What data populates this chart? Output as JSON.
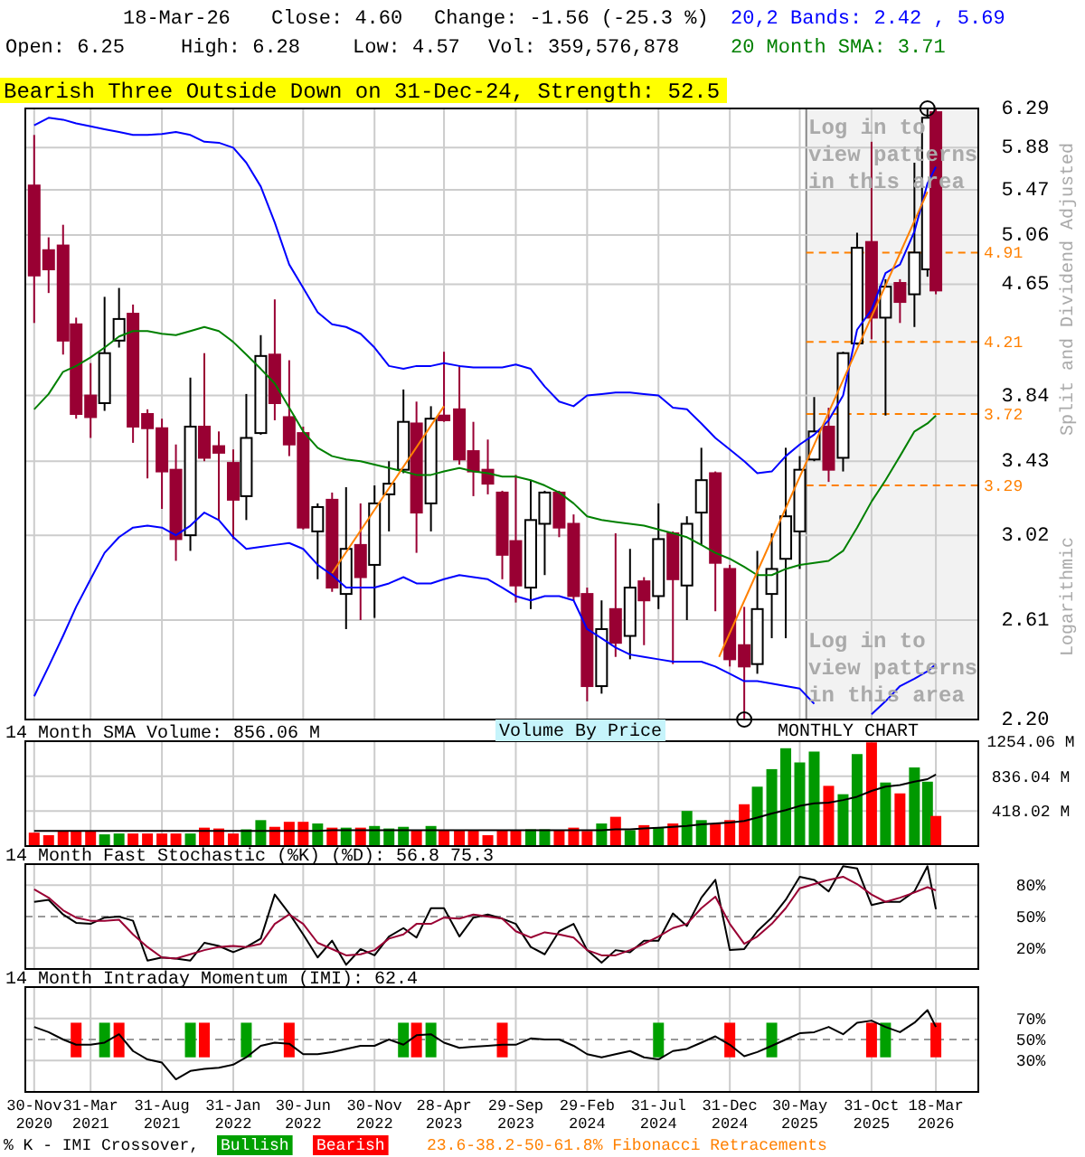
{
  "chart_data": [
    {
      "type": "candlestick",
      "title": "Bearish Three Outside Down on 31-Dec-24, Strength: 52.5",
      "ylabel": "Split and Dividend Adjusted",
      "annotations": [
        "18-Mar-26",
        "Close: 4.60",
        "Change: -1.56 (-25.3 %)",
        "20,2 Bands: 2.42 , 5.69",
        "Open: 6.25",
        "High: 6.28",
        "Low: 4.57",
        "Vol: 359,576,878",
        "20 Month SMA: 3.71",
        "Log in to view patterns in this area",
        "Log in to view patterns in this area",
        "Logarithmic"
      ],
      "x": [
        "2020-11-30",
        "2020-12-31",
        "2021-01-31",
        "2021-02-28",
        "2021-03-31",
        "2021-04-30",
        "2021-05-31",
        "2021-06-30",
        "2021-07-31",
        "2021-08-31",
        "2021-09-30",
        "2021-10-31",
        "2021-11-30",
        "2021-12-31",
        "2022-01-31",
        "2022-02-28",
        "2022-03-31",
        "2022-04-30",
        "2022-05-31",
        "2022-06-30",
        "2022-07-31",
        "2022-08-31",
        "2022-09-30",
        "2022-10-31",
        "2022-11-30",
        "2022-12-31",
        "2023-01-31",
        "2023-02-28",
        "2023-03-31",
        "2023-04-28",
        "2023-05-31",
        "2023-06-30",
        "2023-07-31",
        "2023-08-31",
        "2023-09-29",
        "2023-10-31",
        "2023-11-30",
        "2023-12-31",
        "2024-01-31",
        "2024-02-29",
        "2024-03-31",
        "2024-04-30",
        "2024-05-31",
        "2024-06-30",
        "2024-07-31",
        "2024-08-31",
        "2024-09-30",
        "2024-10-31",
        "2024-11-30",
        "2024-12-31",
        "2025-01-31",
        "2025-02-28",
        "2025-03-31",
        "2025-04-30",
        "2025-05-30",
        "2025-06-30",
        "2025-07-31",
        "2025-08-31",
        "2025-09-30",
        "2025-10-31",
        "2025-11-30",
        "2025-12-31",
        "2026-01-31",
        "2026-02-28",
        "2026-03-18"
      ],
      "ohlc": [
        [
          5.51,
          6.01,
          4.35,
          4.72
        ],
        [
          4.93,
          5.04,
          4.58,
          4.77
        ],
        [
          4.97,
          5.15,
          4.12,
          4.22
        ],
        [
          4.34,
          4.39,
          3.69,
          3.72
        ],
        [
          3.84,
          4.06,
          3.57,
          3.7
        ],
        [
          3.79,
          4.55,
          3.74,
          4.13
        ],
        [
          4.22,
          4.62,
          4.17,
          4.38
        ],
        [
          4.42,
          4.49,
          3.54,
          3.64
        ],
        [
          3.72,
          3.75,
          3.33,
          3.63
        ],
        [
          3.63,
          3.69,
          3.16,
          3.37
        ],
        [
          3.38,
          3.53,
          2.89,
          3.0
        ],
        [
          3.02,
          3.96,
          2.94,
          3.64
        ],
        [
          3.64,
          4.13,
          3.43,
          3.45
        ],
        [
          3.52,
          3.61,
          3.1,
          3.48
        ],
        [
          3.42,
          3.5,
          3.0,
          3.21
        ],
        [
          3.23,
          3.85,
          3.1,
          3.57
        ],
        [
          3.6,
          4.26,
          3.59,
          4.11
        ],
        [
          4.12,
          4.53,
          3.68,
          3.79
        ],
        [
          3.7,
          4.08,
          3.46,
          3.53
        ],
        [
          3.6,
          3.64,
          3.05,
          3.06
        ],
        [
          3.04,
          3.19,
          2.8,
          3.17
        ],
        [
          3.21,
          3.25,
          2.74,
          2.76
        ],
        [
          2.73,
          3.28,
          2.57,
          2.95
        ],
        [
          2.97,
          3.19,
          2.61,
          2.81
        ],
        [
          2.87,
          3.29,
          2.62,
          3.19
        ],
        [
          3.24,
          3.43,
          3.04,
          3.3
        ],
        [
          3.38,
          3.88,
          3.36,
          3.67
        ],
        [
          3.66,
          3.8,
          2.93,
          3.14
        ],
        [
          3.19,
          3.77,
          3.04,
          3.69
        ],
        [
          3.71,
          4.14,
          3.67,
          3.68
        ],
        [
          3.75,
          4.04,
          3.41,
          3.44
        ],
        [
          3.49,
          3.67,
          3.23,
          3.37
        ],
        [
          3.38,
          3.56,
          3.24,
          3.3
        ],
        [
          3.25,
          3.26,
          2.8,
          2.92
        ],
        [
          2.99,
          3.35,
          2.69,
          2.77
        ],
        [
          2.76,
          3.32,
          2.66,
          3.1
        ],
        [
          3.08,
          3.26,
          2.82,
          3.25
        ],
        [
          3.25,
          3.26,
          3.01,
          3.06
        ],
        [
          3.08,
          3.13,
          2.7,
          2.72
        ],
        [
          2.73,
          2.76,
          2.27,
          2.33
        ],
        [
          2.33,
          2.7,
          2.3,
          2.57
        ],
        [
          2.66,
          3.03,
          2.45,
          2.51
        ],
        [
          2.54,
          2.95,
          2.44,
          2.76
        ],
        [
          2.79,
          2.81,
          2.5,
          2.7
        ],
        [
          2.72,
          3.19,
          2.66,
          3.0
        ],
        [
          3.03,
          3.04,
          2.42,
          2.8
        ],
        [
          2.77,
          3.12,
          2.61,
          3.08
        ],
        [
          3.14,
          3.51,
          2.97,
          3.32
        ],
        [
          3.36,
          3.37,
          2.65,
          2.88
        ],
        [
          2.85,
          2.87,
          2.41,
          2.44
        ],
        [
          2.5,
          2.67,
          2.2,
          2.41
        ],
        [
          2.42,
          2.94,
          2.38,
          2.66
        ],
        [
          2.73,
          3.03,
          2.53,
          2.85
        ],
        [
          2.9,
          3.51,
          2.53,
          3.12
        ],
        [
          3.04,
          3.46,
          2.85,
          3.38
        ],
        [
          3.44,
          3.83,
          3.43,
          3.61
        ],
        [
          3.64,
          3.76,
          3.31,
          3.38
        ],
        [
          3.45,
          4.14,
          3.37,
          4.13
        ],
        [
          4.2,
          5.08,
          4.19,
          4.95
        ],
        [
          5.0,
          5.94,
          4.23,
          4.39
        ],
        [
          4.39,
          4.69,
          3.71,
          4.63
        ],
        [
          4.66,
          4.69,
          4.35,
          4.51
        ],
        [
          4.57,
          5.73,
          4.32,
          4.91
        ],
        [
          4.77,
          6.29,
          4.71,
          6.19
        ],
        [
          6.25,
          6.28,
          4.57,
          4.6
        ]
      ],
      "series": [
        {
          "type": "line",
          "color": "#0000ff",
          "values": [
            6.11,
            6.19,
            6.17,
            6.13,
            6.1,
            6.07,
            6.04,
            6.01,
            6.01,
            6.02,
            6.04,
            6.01,
            5.94,
            5.93,
            5.88,
            5.73,
            5.5,
            5.17,
            4.81,
            4.62,
            4.43,
            4.34,
            4.32,
            4.27,
            4.17,
            4.04,
            4.02,
            4.04,
            4.04,
            4.06,
            4.04,
            4.03,
            4.03,
            4.03,
            4.05,
            4.02,
            3.9,
            3.8,
            3.77,
            3.84,
            3.85,
            3.86,
            3.86,
            3.85,
            3.84,
            3.76,
            3.75,
            3.66,
            3.57,
            3.5,
            3.43,
            3.36,
            3.37,
            3.46,
            3.53,
            3.59,
            3.68,
            3.84,
            4.3,
            4.45,
            4.74,
            4.81,
            5.09,
            5.53,
            5.69
          ]
        },
        {
          "type": "line",
          "color": "#0000ff",
          "values": [
            2.29,
            2.41,
            2.54,
            2.67,
            2.8,
            2.93,
            3.01,
            3.06,
            3.07,
            3.06,
            3.02,
            3.07,
            3.14,
            3.1,
            3.01,
            2.95,
            2.96,
            2.97,
            2.98,
            2.95,
            2.87,
            2.82,
            2.76,
            2.76,
            2.76,
            2.78,
            2.81,
            2.78,
            2.78,
            2.8,
            2.82,
            2.81,
            2.8,
            2.76,
            2.72,
            2.7,
            2.72,
            2.72,
            2.7,
            2.57,
            2.53,
            2.49,
            2.46,
            2.45,
            2.44,
            2.43,
            2.43,
            2.43,
            2.41,
            2.38,
            2.35,
            2.35,
            2.34,
            2.33,
            2.32,
            2.26,
            null,
            null,
            null,
            2.22,
            2.27,
            2.33,
            2.36,
            2.39,
            2.42
          ]
        },
        {
          "type": "line",
          "color": "#008000",
          "values": [
            3.75,
            3.85,
            4.0,
            4.04,
            4.1,
            4.17,
            4.25,
            4.29,
            4.29,
            4.27,
            4.26,
            4.29,
            4.32,
            4.29,
            4.21,
            4.12,
            4.02,
            3.92,
            3.76,
            3.61,
            3.51,
            3.46,
            3.44,
            3.43,
            3.41,
            3.39,
            3.37,
            3.35,
            3.35,
            3.37,
            3.39,
            3.37,
            3.36,
            3.34,
            3.34,
            3.32,
            3.29,
            3.25,
            3.19,
            3.12,
            3.1,
            3.09,
            3.08,
            3.07,
            3.05,
            3.03,
            3.01,
            2.97,
            2.93,
            2.9,
            2.86,
            2.82,
            2.82,
            2.85,
            2.87,
            2.88,
            2.89,
            2.94,
            3.06,
            3.2,
            3.32,
            3.46,
            3.61,
            3.66,
            3.71
          ]
        },
        {
          "type": "line",
          "color": "#ff8000",
          "x": [
            "2022-08-31",
            "2023-04-28"
          ],
          "values": [
            2.83,
            3.77
          ]
        },
        {
          "type": "line",
          "color": "#ff8000",
          "x": [
            "2024-12-08",
            "2026-02-28"
          ],
          "values": [
            2.45,
            5.45
          ]
        }
      ],
      "xlim": [
        "2020-11-11",
        "2026-06-17"
      ],
      "ylim": [
        2.2,
        6.29
      ],
      "log": true,
      "yticks": [
        {
          "value": 2.2,
          "label": "2.20"
        },
        2.61,
        3.02,
        3.43,
        3.84,
        4.65,
        5.06,
        5.47,
        5.88,
        6.29
      ],
      "xticks": [
        {
          "value": "2020-11-30",
          "label": null
        },
        {
          "value": "2021-03-31",
          "label": null
        },
        {
          "value": "2021-08-31",
          "label": null
        },
        {
          "value": "2022-01-31",
          "label": null
        },
        {
          "value": "2022-06-30",
          "label": null
        },
        {
          "value": "2022-11-30",
          "label": null
        },
        {
          "value": "2023-04-28",
          "label": null
        },
        {
          "value": "2023-09-29",
          "label": null
        },
        {
          "value": "2024-02-29",
          "label": null
        },
        {
          "value": "2024-07-31",
          "label": null
        },
        {
          "value": "2024-12-31",
          "label": null
        },
        {
          "value": "2025-05-30",
          "label": null
        },
        {
          "value": "2025-10-31",
          "label": null
        },
        {
          "value": "2026-03-18",
          "label": null
        }
      ],
      "grid": true,
      "tick_labels": "y",
      "ref_lines": [
        {
          "axis": "y",
          "value": 4.91,
          "label": "4.91",
          "color": "#ff8000",
          "line_style": "dashed"
        },
        {
          "axis": "y",
          "value": 4.21,
          "label": "4.21",
          "color": "#ff8000",
          "line_style": "dashed"
        },
        {
          "axis": "y",
          "value": 3.72,
          "label": "3.72",
          "color": "#ff8000",
          "line_style": "dashed"
        },
        {
          "axis": "y",
          "value": 3.29,
          "label": "3.29",
          "color": "#ff8000",
          "line_style": "dashed"
        }
      ],
      "bands": [
        {
          "axis": "x",
          "from": "2025-06-13",
          "to": "2026-06-17",
          "color": "#f2f2f2"
        }
      ]
    },
    {
      "type": "bar",
      "title": "14 Month SMA Volume: 856.06 M",
      "annotations": [
        "Volume By Price",
        "MONTHLY CHART"
      ],
      "x": [
        "2020-11-30",
        "2020-12-31",
        "2021-01-31",
        "2021-02-28",
        "2021-03-31",
        "2021-04-30",
        "2021-05-31",
        "2021-06-30",
        "2021-07-31",
        "2021-08-31",
        "2021-09-30",
        "2021-10-31",
        "2021-11-30",
        "2021-12-31",
        "2022-01-31",
        "2022-02-28",
        "2022-03-31",
        "2022-04-30",
        "2022-05-31",
        "2022-06-30",
        "2022-07-31",
        "2022-08-31",
        "2022-09-30",
        "2022-10-31",
        "2022-11-30",
        "2022-12-31",
        "2023-01-31",
        "2023-02-28",
        "2023-03-31",
        "2023-04-28",
        "2023-05-31",
        "2023-06-30",
        "2023-07-31",
        "2023-08-31",
        "2023-09-29",
        "2023-10-31",
        "2023-11-30",
        "2023-12-31",
        "2024-01-31",
        "2024-02-29",
        "2024-03-31",
        "2024-04-30",
        "2024-05-31",
        "2024-06-30",
        "2024-07-31",
        "2024-08-31",
        "2024-09-30",
        "2024-10-31",
        "2024-11-30",
        "2024-12-31",
        "2025-01-31",
        "2025-02-28",
        "2025-03-31",
        "2025-04-30",
        "2025-05-30",
        "2025-06-30",
        "2025-07-31",
        "2025-08-31",
        "2025-09-30",
        "2025-10-31",
        "2025-11-30",
        "2025-12-31",
        "2026-01-31",
        "2026-02-28",
        "2026-03-18"
      ],
      "values": [
        160,
        130,
        180,
        180,
        180,
        140,
        150,
        150,
        150,
        150,
        150,
        150,
        220,
        210,
        150,
        200,
        310,
        230,
        290,
        290,
        270,
        220,
        220,
        220,
        240,
        210,
        230,
        190,
        240,
        190,
        190,
        190,
        130,
        190,
        190,
        200,
        200,
        190,
        220,
        180,
        270,
        350,
        190,
        250,
        220,
        270,
        420,
        310,
        270,
        310,
        500,
        710,
        920,
        1170,
        1000,
        1130,
        720,
        620,
        1100,
        1240,
        760,
        630,
        940,
        770,
        360
      ],
      "colors": [
        "#ff0000",
        "#ff0000",
        "#ff0000",
        "#ff0000",
        "#ff0000",
        "#009900",
        "#009900",
        "#ff0000",
        "#ff0000",
        "#ff0000",
        "#ff0000",
        "#009900",
        "#ff0000",
        "#ff0000",
        "#ff0000",
        "#009900",
        "#009900",
        "#ff0000",
        "#ff0000",
        "#ff0000",
        "#009900",
        "#ff0000",
        "#009900",
        "#ff0000",
        "#009900",
        "#009900",
        "#009900",
        "#ff0000",
        "#009900",
        "#ff0000",
        "#ff0000",
        "#ff0000",
        "#ff0000",
        "#ff0000",
        "#ff0000",
        "#009900",
        "#009900",
        "#ff0000",
        "#ff0000",
        "#ff0000",
        "#009900",
        "#ff0000",
        "#009900",
        "#ff0000",
        "#009900",
        "#ff0000",
        "#009900",
        "#009900",
        "#ff0000",
        "#ff0000",
        "#ff0000",
        "#009900",
        "#009900",
        "#009900",
        "#009900",
        "#009900",
        "#ff0000",
        "#009900",
        "#009900",
        "#ff0000",
        "#009900",
        "#ff0000",
        "#009900",
        "#009900",
        "#ff0000"
      ],
      "series": [
        {
          "type": "line",
          "color": "#000000",
          "values": [
            180,
            180,
            180,
            180,
            180,
            180,
            180,
            180,
            180,
            180,
            180,
            180,
            180,
            180,
            180,
            180,
            180,
            180,
            180,
            180,
            180,
            190,
            190,
            190,
            190,
            190,
            190,
            190,
            190,
            190,
            190,
            190,
            190,
            190,
            190,
            190,
            190,
            190,
            190,
            190,
            190,
            200,
            200,
            210,
            220,
            230,
            240,
            260,
            270,
            280,
            300,
            340,
            390,
            430,
            480,
            510,
            520,
            550,
            590,
            660,
            710,
            730,
            770,
            800,
            856.06
          ]
        }
      ],
      "xlim": [
        "2020-11-11",
        "2026-06-17"
      ],
      "ylim": [
        0,
        1254.06
      ],
      "yticks": [
        {
          "value": 418.02,
          "label": "418.02 M"
        },
        {
          "value": 836.04,
          "label": "836.04 M"
        },
        {
          "value": 1254.06,
          "label": "1254.06 M"
        }
      ],
      "xticks": [
        {
          "value": "2020-11-30",
          "label": null
        },
        {
          "value": "2021-03-31",
          "label": null
        },
        {
          "value": "2021-08-31",
          "label": null
        },
        {
          "value": "2022-01-31",
          "label": null
        },
        {
          "value": "2022-06-30",
          "label": null
        },
        {
          "value": "2022-11-30",
          "label": null
        },
        {
          "value": "2023-04-28",
          "label": null
        },
        {
          "value": "2023-09-29",
          "label": null
        },
        {
          "value": "2024-02-29",
          "label": null
        },
        {
          "value": "2024-07-31",
          "label": null
        },
        {
          "value": "2024-12-31",
          "label": null
        },
        {
          "value": "2025-05-30",
          "label": null
        },
        {
          "value": "2025-10-31",
          "label": null
        },
        {
          "value": "2026-03-18",
          "label": null
        }
      ],
      "grid": true,
      "tick_labels": "y"
    },
    {
      "type": "line",
      "title": "14 Month Fast Stochastic (%K) (%D): 56.8  75.3",
      "x": [
        "2020-11-30",
        "2020-12-31",
        "2021-01-31",
        "2021-02-28",
        "2021-03-31",
        "2021-04-30",
        "2021-05-31",
        "2021-06-30",
        "2021-07-31",
        "2021-08-31",
        "2021-09-30",
        "2021-10-31",
        "2021-11-30",
        "2021-12-31",
        "2022-01-31",
        "2022-02-28",
        "2022-03-31",
        "2022-04-30",
        "2022-05-31",
        "2022-06-30",
        "2022-07-31",
        "2022-08-31",
        "2022-09-30",
        "2022-10-31",
        "2022-11-30",
        "2022-12-31",
        "2023-01-31",
        "2023-02-28",
        "2023-03-31",
        "2023-04-28",
        "2023-05-31",
        "2023-06-30",
        "2023-07-31",
        "2023-08-31",
        "2023-09-29",
        "2023-10-31",
        "2023-11-30",
        "2023-12-31",
        "2024-01-31",
        "2024-02-29",
        "2024-03-31",
        "2024-04-30",
        "2024-05-31",
        "2024-06-30",
        "2024-07-31",
        "2024-08-31",
        "2024-09-30",
        "2024-10-31",
        "2024-11-30",
        "2024-12-31",
        "2025-01-31",
        "2025-02-28",
        "2025-03-31",
        "2025-04-30",
        "2025-05-30",
        "2025-06-30",
        "2025-07-31",
        "2025-08-31",
        "2025-09-30",
        "2025-10-31",
        "2025-11-30",
        "2025-12-31",
        "2026-01-31",
        "2026-02-28",
        "2026-03-18"
      ],
      "series": [
        {
          "color": "#000000",
          "values": [
            64,
            66,
            52,
            44,
            43,
            49,
            50,
            46,
            8,
            11,
            10,
            8,
            25,
            22,
            16,
            21,
            29,
            71,
            53,
            33,
            11,
            27,
            4,
            19,
            13,
            31,
            39,
            30,
            58,
            58,
            31,
            49,
            52,
            48,
            43,
            21,
            14,
            36,
            43,
            18,
            6,
            18,
            16,
            27,
            27,
            53,
            41,
            68,
            85,
            18,
            19,
            36,
            49,
            66,
            88,
            85,
            74,
            98,
            96,
            61,
            64,
            64,
            74,
            98,
            57
          ]
        },
        {
          "color": "#990033",
          "values": [
            76,
            68,
            56,
            49,
            46,
            46,
            47,
            33,
            21,
            11,
            10,
            14,
            18,
            21,
            22,
            21,
            24,
            43,
            52,
            43,
            25,
            19,
            13,
            14,
            18,
            29,
            33,
            43,
            43,
            49,
            48,
            52,
            50,
            48,
            36,
            30,
            35,
            33,
            30,
            18,
            13,
            13,
            18,
            24,
            31,
            39,
            43,
            58,
            69,
            43,
            24,
            31,
            43,
            58,
            77,
            81,
            85,
            88,
            81,
            71,
            64,
            68,
            73,
            78,
            75
          ]
        }
      ],
      "xlim": [
        "2020-11-11",
        "2026-06-17"
      ],
      "ylim": [
        0,
        100
      ],
      "yticks": [
        {
          "value": 20,
          "label": "20%"
        },
        {
          "value": 50,
          "label": "50%"
        },
        {
          "value": 80,
          "label": "80%"
        }
      ],
      "xticks": [
        {
          "value": "2020-11-30",
          "label": null
        },
        {
          "value": "2021-03-31",
          "label": null
        },
        {
          "value": "2021-08-31",
          "label": null
        },
        {
          "value": "2022-01-31",
          "label": null
        },
        {
          "value": "2022-06-30",
          "label": null
        },
        {
          "value": "2022-11-30",
          "label": null
        },
        {
          "value": "2023-04-28",
          "label": null
        },
        {
          "value": "2023-09-29",
          "label": null
        },
        {
          "value": "2024-02-29",
          "label": null
        },
        {
          "value": "2024-07-31",
          "label": null
        },
        {
          "value": "2024-12-31",
          "label": null
        },
        {
          "value": "2025-05-30",
          "label": null
        },
        {
          "value": "2025-10-31",
          "label": null
        },
        {
          "value": "2026-03-18",
          "label": null
        }
      ],
      "grid": true,
      "tick_labels": "y",
      "ref_lines": [
        {
          "axis": "y",
          "value": 50,
          "color": "#999999",
          "line_style": "dashed"
        }
      ]
    },
    {
      "type": "bar",
      "title": "14 Month Intraday Momentum (IMI): 62.4",
      "annotations": [
        "% K - IMI Crossover,",
        "Bullish",
        "Bearish",
        "23.6-38.2-50-61.8% Fibonacci Retracements"
      ],
      "x": [
        "2020-11-30",
        "2020-12-31",
        "2021-01-31",
        "2021-02-28",
        "2021-03-31",
        "2021-04-30",
        "2021-05-31",
        "2021-06-30",
        "2021-07-31",
        "2021-08-31",
        "2021-09-30",
        "2021-10-31",
        "2021-11-30",
        "2021-12-31",
        "2022-01-31",
        "2022-02-28",
        "2022-03-31",
        "2022-04-30",
        "2022-05-31",
        "2022-06-30",
        "2022-07-31",
        "2022-08-31",
        "2022-09-30",
        "2022-10-31",
        "2022-11-30",
        "2022-12-31",
        "2023-01-31",
        "2023-02-28",
        "2023-03-31",
        "2023-04-28",
        "2023-05-31",
        "2023-06-30",
        "2023-07-31",
        "2023-08-31",
        "2023-09-29",
        "2023-10-31",
        "2023-11-30",
        "2023-12-31",
        "2024-01-31",
        "2024-02-29",
        "2024-03-31",
        "2024-04-30",
        "2024-05-31",
        "2024-06-30",
        "2024-07-31",
        "2024-08-31",
        "2024-09-30",
        "2024-10-31",
        "2024-11-30",
        "2024-12-31",
        "2025-01-31",
        "2025-02-28",
        "2025-03-31",
        "2025-04-30",
        "2025-05-30",
        "2025-06-30",
        "2025-07-31",
        "2025-08-31",
        "2025-09-30",
        "2025-10-31",
        "2025-11-30",
        "2025-12-31",
        "2026-01-31",
        "2026-02-28",
        "2026-03-18"
      ],
      "values": [
        null,
        null,
        null,
        33,
        null,
        33,
        33,
        null,
        null,
        null,
        null,
        33,
        33,
        null,
        null,
        33,
        null,
        null,
        33,
        null,
        null,
        null,
        null,
        null,
        null,
        null,
        33,
        33,
        33,
        null,
        null,
        null,
        null,
        33,
        null,
        null,
        null,
        null,
        null,
        null,
        null,
        null,
        null,
        null,
        33,
        null,
        null,
        null,
        null,
        33,
        null,
        null,
        33,
        null,
        null,
        null,
        null,
        null,
        null,
        33,
        33,
        null,
        null,
        null,
        33
      ],
      "base": [
        null,
        null,
        null,
        33,
        null,
        33,
        33,
        null,
        null,
        null,
        null,
        33,
        33,
        null,
        null,
        33,
        null,
        null,
        33,
        null,
        null,
        null,
        null,
        null,
        null,
        null,
        33,
        33,
        33,
        null,
        null,
        null,
        null,
        33,
        null,
        null,
        null,
        null,
        null,
        null,
        null,
        null,
        null,
        null,
        33,
        null,
        null,
        null,
        null,
        33,
        null,
        null,
        33,
        null,
        null,
        null,
        null,
        null,
        null,
        33,
        33,
        null,
        null,
        null,
        33
      ],
      "colors": [
        null,
        null,
        null,
        "#ff0000",
        null,
        "#00a000",
        "#ff0000",
        null,
        null,
        null,
        null,
        "#00a000",
        "#ff0000",
        null,
        null,
        "#00a000",
        null,
        null,
        "#ff0000",
        null,
        null,
        null,
        null,
        null,
        null,
        null,
        "#00a000",
        "#ff0000",
        "#00a000",
        null,
        null,
        null,
        null,
        "#ff0000",
        null,
        null,
        null,
        null,
        null,
        null,
        null,
        null,
        null,
        null,
        "#00a000",
        null,
        null,
        null,
        null,
        "#ff0000",
        null,
        null,
        "#00a000",
        null,
        null,
        null,
        null,
        null,
        null,
        "#ff0000",
        "#00a000",
        null,
        null,
        null,
        "#ff0000"
      ],
      "series": [
        {
          "type": "line",
          "color": "#000000",
          "values": [
            62,
            57,
            50,
            45,
            45,
            47,
            55,
            39,
            31,
            28,
            12,
            20,
            22,
            23,
            26,
            33,
            44,
            47,
            46,
            36,
            36,
            38,
            41,
            44,
            44,
            50,
            45,
            54,
            55,
            47,
            42,
            43,
            44,
            45,
            45,
            51,
            50,
            50,
            44,
            36,
            33,
            36,
            39,
            33,
            31,
            39,
            41,
            47,
            53,
            45,
            34,
            38,
            44,
            50,
            56,
            57,
            62,
            55,
            66,
            68,
            62,
            57,
            66,
            78,
            62
          ]
        }
      ],
      "xlim": [
        "2020-11-11",
        "2026-06-17"
      ],
      "ylim": [
        0,
        100
      ],
      "yticks": [
        {
          "value": 30,
          "label": "30%"
        },
        {
          "value": 50,
          "label": "50%"
        },
        {
          "value": 70,
          "label": "70%"
        }
      ],
      "xticks": [
        {
          "value": "2020-11-30",
          "label": "30-Nov 2020"
        },
        {
          "value": "2021-03-31",
          "label": "31-Mar 2021"
        },
        {
          "value": "2021-08-31",
          "label": "31-Aug 2021"
        },
        {
          "value": "2022-01-31",
          "label": "31-Jan 2022"
        },
        {
          "value": "2022-06-30",
          "label": "30-Jun 2022"
        },
        {
          "value": "2022-11-30",
          "label": "30-Nov 2022"
        },
        {
          "value": "2023-04-28",
          "label": "28-Apr 2023"
        },
        {
          "value": "2023-09-29",
          "label": "29-Sep 2023"
        },
        {
          "value": "2024-02-29",
          "label": "29-Feb 2024"
        },
        {
          "value": "2024-07-31",
          "label": "31-Jul 2024"
        },
        {
          "value": "2024-12-31",
          "label": "31-Dec 2024"
        },
        {
          "value": "2025-05-30",
          "label": "30-May 2025"
        },
        {
          "value": "2025-10-31",
          "label": "31-Oct 2025"
        },
        {
          "value": "2026-03-18",
          "label": "18-Mar 2026"
        }
      ],
      "grid": true,
      "ref_lines": [
        {
          "axis": "y",
          "value": 50,
          "color": "#999999",
          "line_style": "dashed"
        }
      ]
    }
  ]
}
